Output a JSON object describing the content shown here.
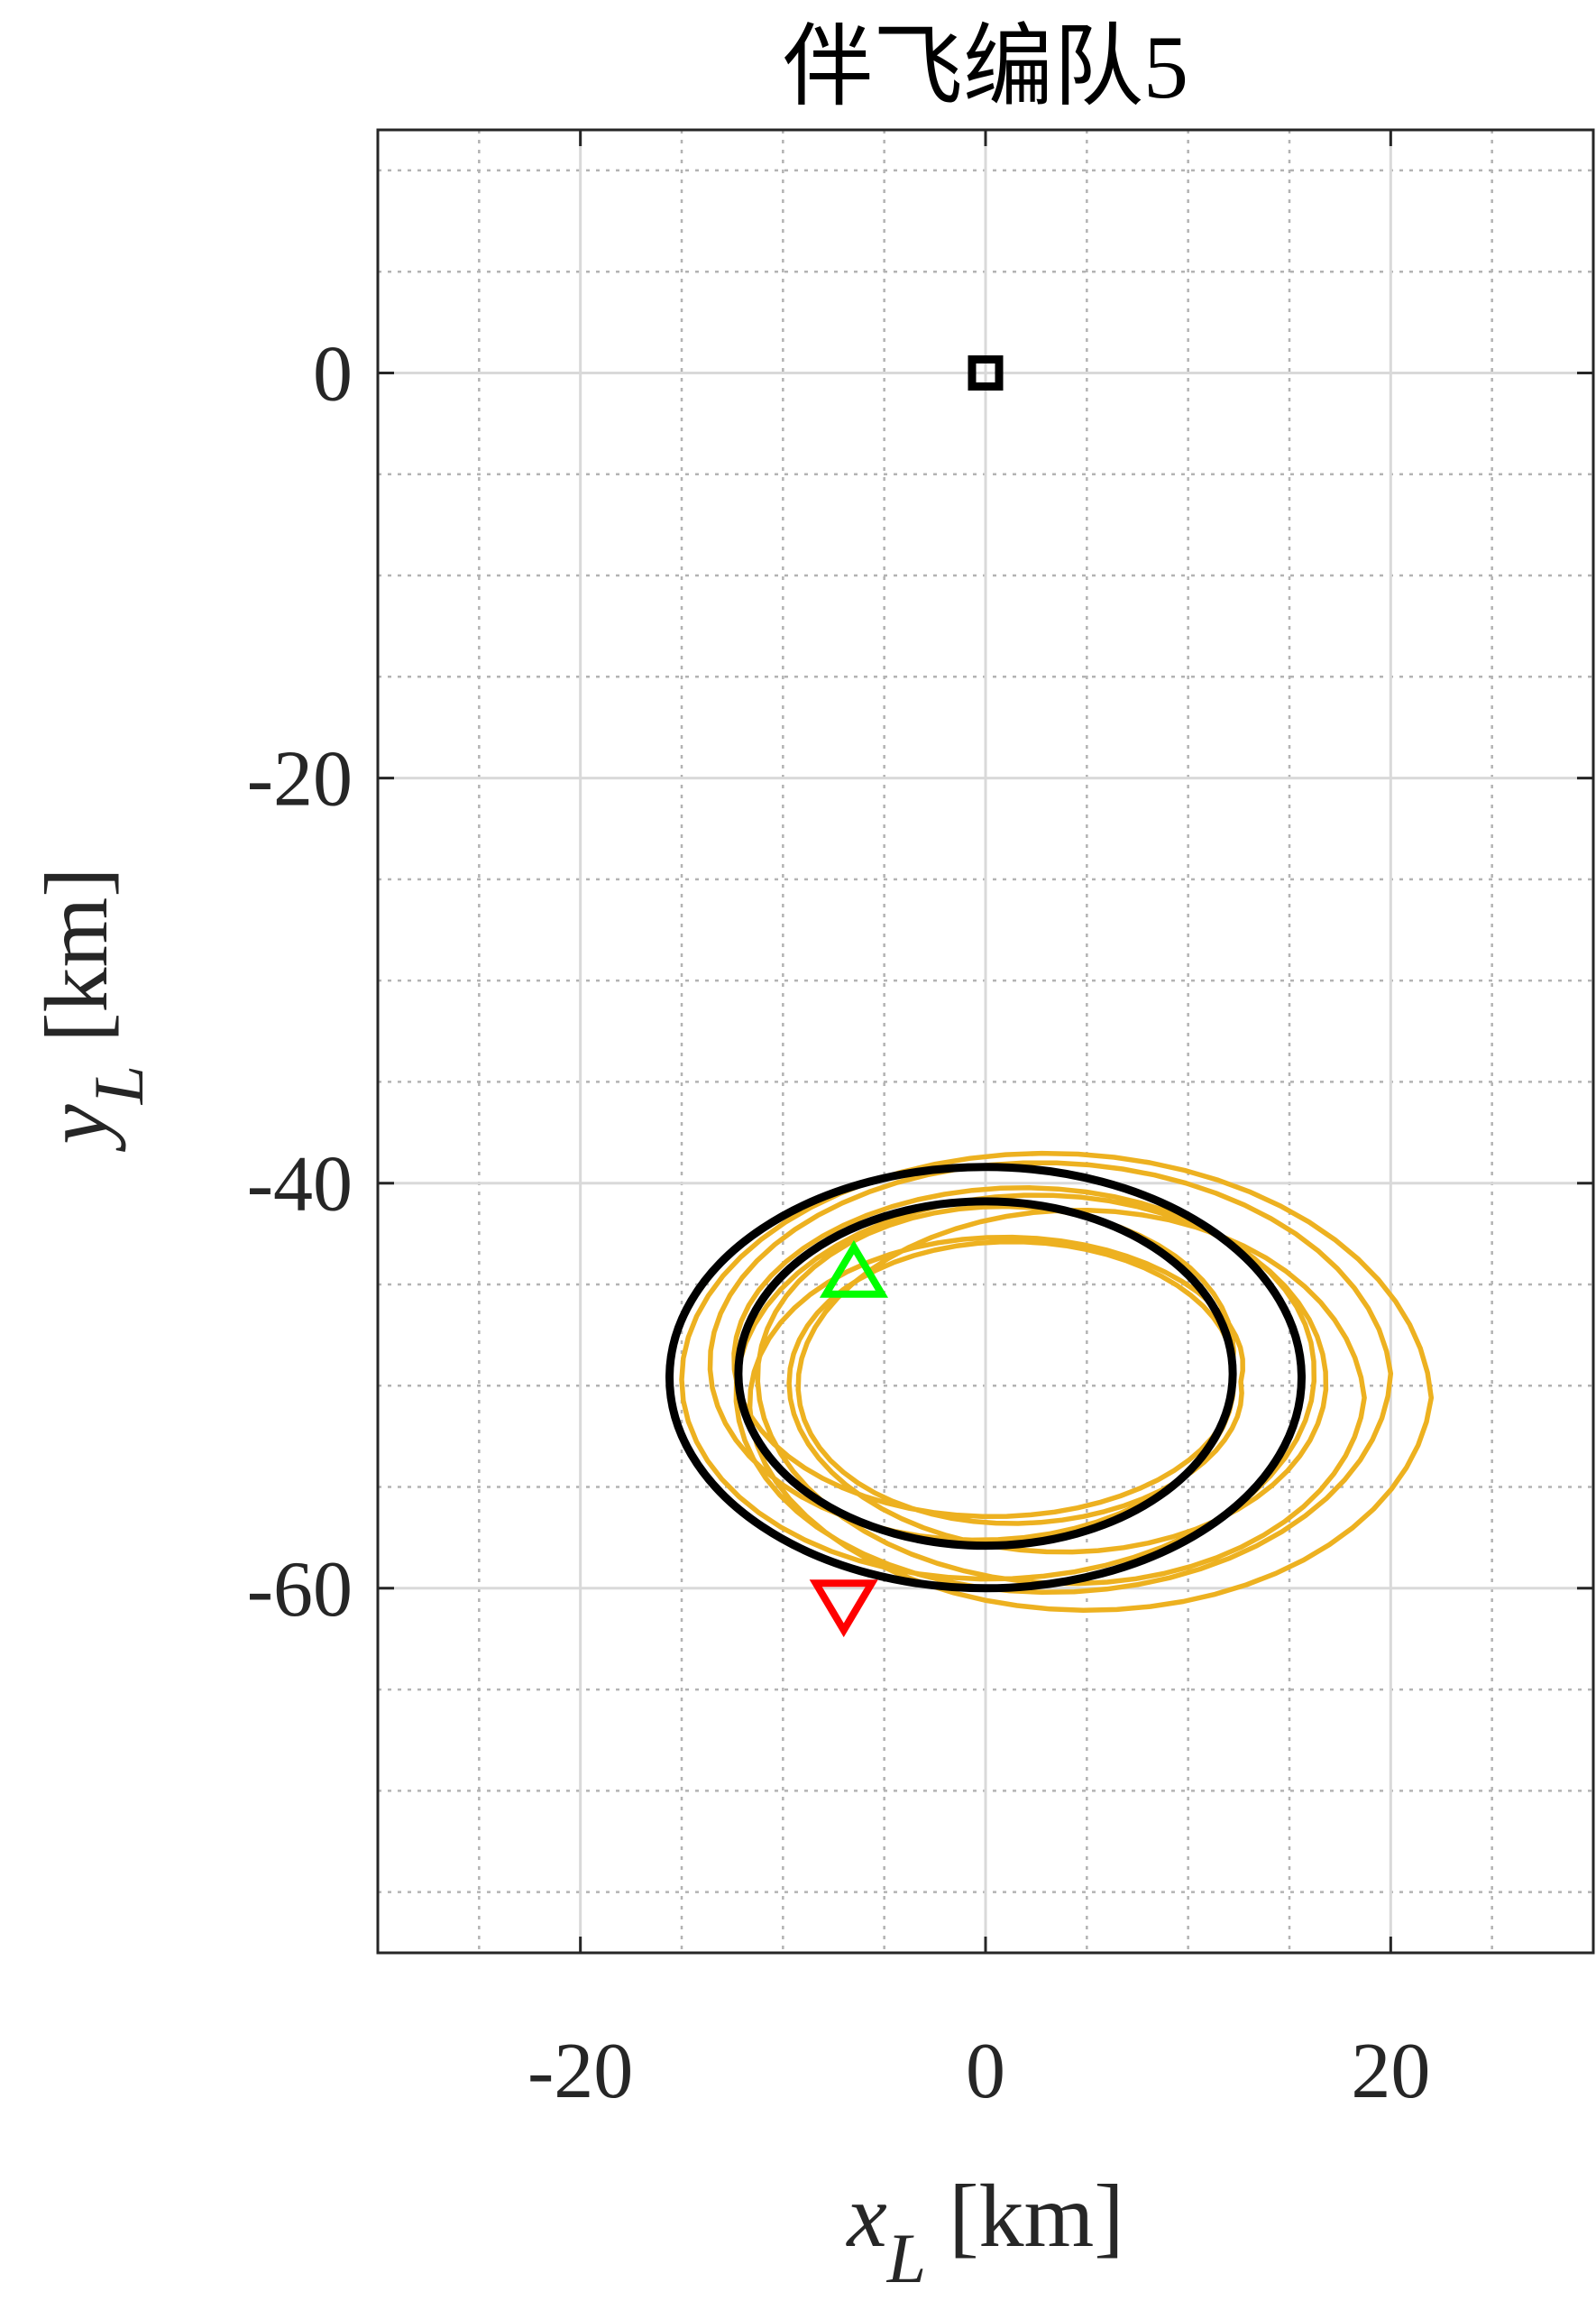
{
  "chart_data": {
    "type": "line",
    "title": "伴飞编队5",
    "xlabel": {
      "main": "x",
      "sub": "L",
      "unit": " [km]"
    },
    "ylabel": {
      "main": "y",
      "sub": "L",
      "unit": " [km]"
    },
    "xlim": [
      -30,
      30
    ],
    "ylim": [
      -78,
      12
    ],
    "xticks": [
      -20,
      0,
      20
    ],
    "yticks": [
      0,
      -20,
      -40,
      -60
    ],
    "xtick_labels": [
      "-20",
      "0",
      "20"
    ],
    "ytick_labels": [
      "0",
      "-20",
      "-40",
      "-60"
    ],
    "minor_xticks": [
      -25,
      -15,
      -10,
      -5,
      5,
      10,
      15,
      25
    ],
    "minor_yticks": [
      10,
      5,
      -5,
      -10,
      -15,
      -25,
      -30,
      -35,
      -45,
      -50,
      -55,
      -65,
      -70,
      -75
    ],
    "grid": true,
    "minor_grid": true,
    "series": [
      {
        "kind": "spiral",
        "color": "#EDB120",
        "turns": [
          {
            "cx": 3.5,
            "cy": -50.6,
            "rx": 18.5,
            "ry": 12.3
          },
          {
            "cx": 0.6,
            "cy": -48.8,
            "rx": 15.6,
            "ry": 9.6
          },
          {
            "cx": 1.2,
            "cy": -49.6,
            "rx": 11.0,
            "ry": 6.2
          },
          {
            "cx": 3.6,
            "cy": -50.2,
            "rx": 13.2,
            "ry": 8.8
          },
          {
            "cx": 2.5,
            "cy": -49.4,
            "rx": 17.5,
            "ry": 11.2
          },
          {
            "cx": 0.0,
            "cy": -49.0,
            "rx": 12.2,
            "ry": 7.6
          },
          {
            "cx": 4.2,
            "cy": -50.6,
            "rx": 14.5,
            "ry": 10.2
          },
          {
            "cx": 2.2,
            "cy": -49.8,
            "rx": 10.4,
            "ry": 5.6
          }
        ]
      },
      {
        "kind": "ellipse",
        "color": "#000000",
        "cx": 0,
        "cy": -49.6,
        "rx": 15.6,
        "ry": 10.4
      },
      {
        "kind": "ellipse",
        "color": "#000000",
        "cx": 0,
        "cy": -49.4,
        "rx": 12.2,
        "ry": 8.5
      }
    ],
    "markers": [
      {
        "shape": "square",
        "x": 0,
        "y": 0,
        "color": "#000000"
      },
      {
        "shape": "triangle-up",
        "x": -6.5,
        "y": -44.5,
        "color": "#00FF00"
      },
      {
        "shape": "triangle-down",
        "x": -7.0,
        "y": -61.0,
        "color": "#FF0000"
      }
    ]
  }
}
